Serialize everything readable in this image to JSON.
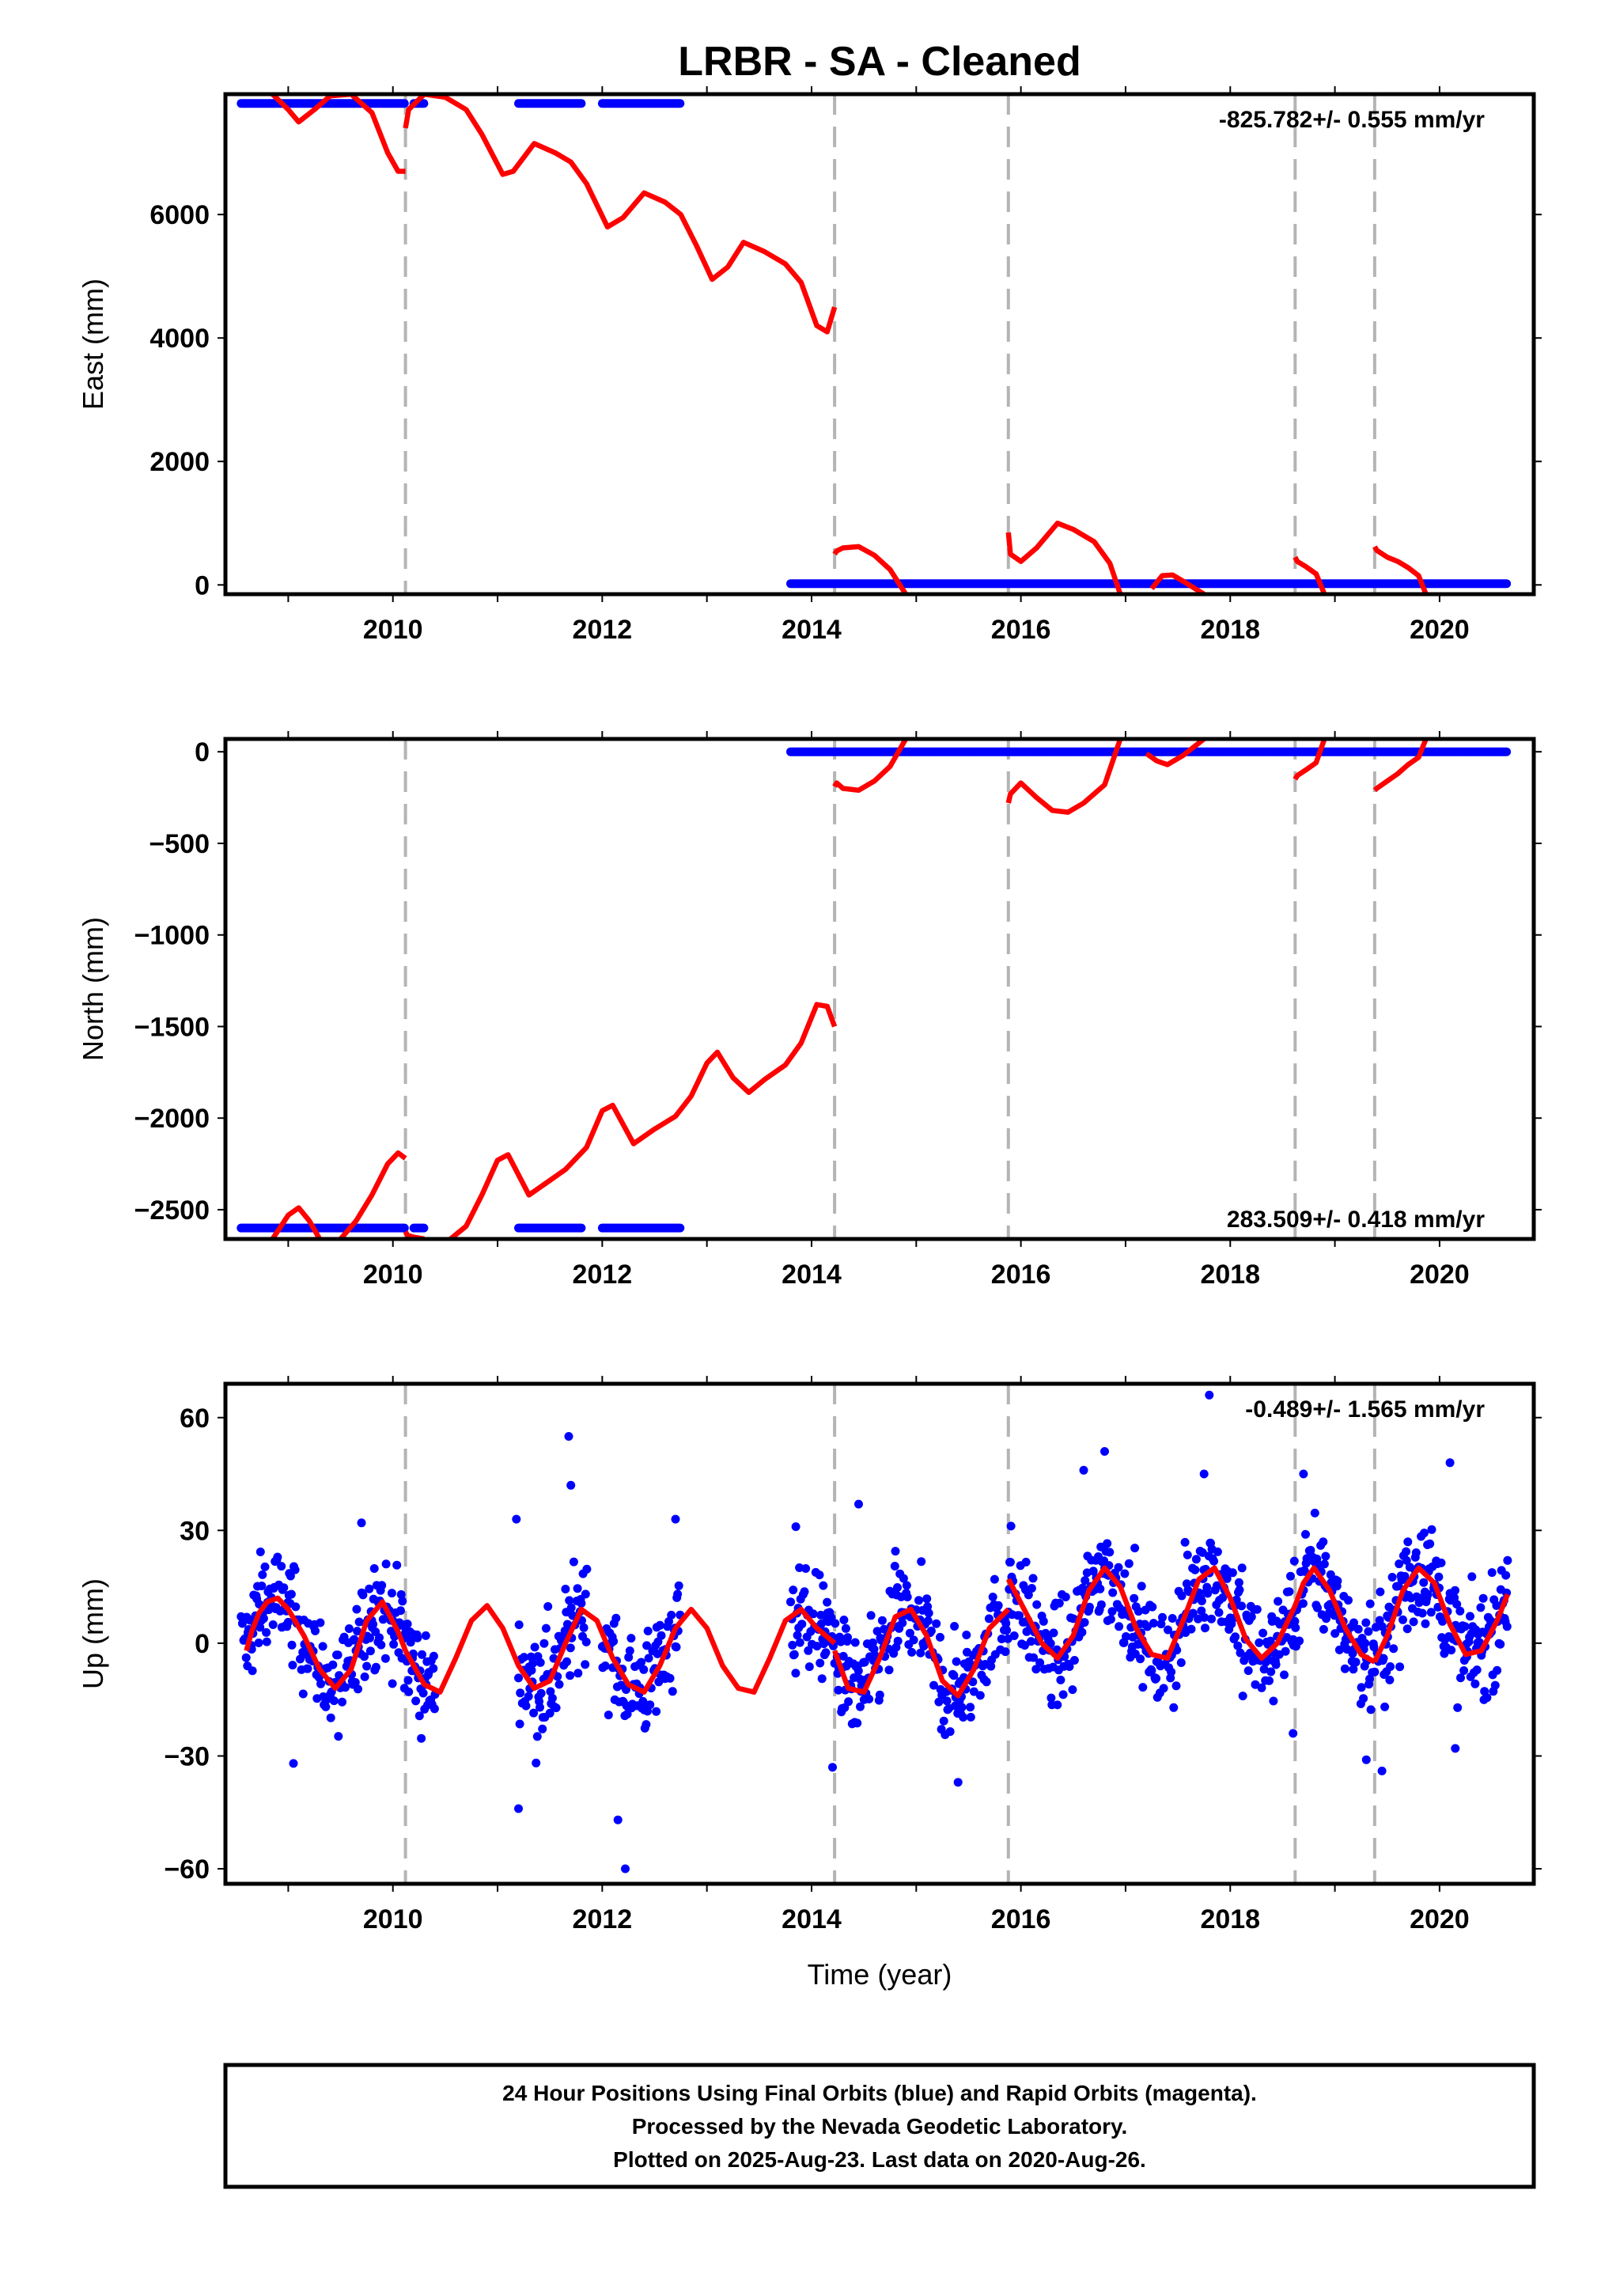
{
  "title": "LRBR  - SA - Cleaned",
  "colors": {
    "observations": "#0000ff",
    "model": "#ff0000",
    "breaks": "#b4b4b4"
  },
  "xlabel": "Time (year)",
  "x_ticks": [
    "2010",
    "2012",
    "2014",
    "2016",
    "2018",
    "2020"
  ],
  "footer": [
    "24 Hour Positions Using Final Orbits (blue) and Rapid Orbits (magenta).",
    "Processed by the Nevada Geodetic Laboratory.",
    "Plotted on 2025-Aug-23. Last data on 2020-Aug-26."
  ],
  "chart_data": [
    {
      "type": "scatter",
      "component": "east",
      "ylabel": "East (mm)",
      "rate": "-825.782+/- 0.555 mm/yr",
      "xlim": [
        2008.4,
        2020.9
      ],
      "ylim": [
        -150,
        7950
      ],
      "y_ticks": [
        "0",
        "2000",
        "4000",
        "6000"
      ],
      "y_tick_values": [
        0,
        2000,
        4000,
        6000
      ],
      "break_epochs": [
        2010.12,
        2014.22,
        2015.88,
        2018.62,
        2019.38
      ],
      "series": [
        {
          "name": "Observations",
          "segments": [
            {
              "x": [
                2008.55,
                2010.12
              ],
              "y": 7800
            },
            {
              "x": [
                2010.2,
                2010.3
              ],
              "y": 7800
            },
            {
              "x": [
                2011.2,
                2011.8
              ],
              "y": 7800
            },
            {
              "x": [
                2012.0,
                2012.75
              ],
              "y": 7800
            },
            {
              "x": [
                2013.8,
                2020.65
              ],
              "y": 20
            }
          ]
        },
        {
          "name": "Model",
          "pieces": [
            {
              "x": [
                2008.85,
                2009.0,
                2009.1,
                2009.25,
                2009.4,
                2009.6,
                2009.8,
                2009.95,
                2010.05,
                2010.12
              ],
              "y": [
                7950,
                7700,
                7500,
                7700,
                7920,
                7950,
                7650,
                7000,
                6700,
                6700
              ]
            },
            {
              "x": [
                2010.12,
                2010.15,
                2010.3,
                2010.5,
                2010.7,
                2010.85,
                2011.05,
                2011.15,
                2011.35,
                2011.55,
                2011.7,
                2011.85,
                2012.05,
                2012.2,
                2012.4,
                2012.6,
                2012.75,
                2012.9,
                2013.05,
                2013.2,
                2013.35,
                2013.55,
                2013.75,
                2013.9,
                2014.05,
                2014.15,
                2014.22
              ],
              "y": [
                7400,
                7700,
                7950,
                7900,
                7700,
                7300,
                6650,
                6700,
                7150,
                7000,
                6850,
                6500,
                5800,
                5950,
                6350,
                6200,
                6000,
                5500,
                4950,
                5150,
                5550,
                5400,
                5200,
                4900,
                4200,
                4100,
                4500
              ]
            },
            {
              "x": [
                2014.22,
                2014.24,
                2014.3,
                2014.45,
                2014.6,
                2014.75,
                2014.9
              ],
              "y": [
                500,
                550,
                600,
                620,
                480,
                250,
                -150
              ]
            },
            {
              "x": [
                2015.88,
                2015.9,
                2016.0,
                2016.15,
                2016.35,
                2016.5,
                2016.7,
                2016.85,
                2016.95
              ],
              "y": [
                850,
                500,
                380,
                600,
                1000,
                900,
                700,
                350,
                -150
              ]
            },
            {
              "x": [
                2017.25,
                2017.35,
                2017.45,
                2017.55,
                2017.75
              ],
              "y": [
                -60,
                150,
                160,
                60,
                -150
              ]
            },
            {
              "x": [
                2018.62,
                2018.64,
                2018.72,
                2018.82,
                2018.9
              ],
              "y": [
                450,
                380,
                300,
                180,
                -150
              ]
            },
            {
              "x": [
                2019.38,
                2019.4,
                2019.5,
                2019.6,
                2019.7,
                2019.8,
                2019.87
              ],
              "y": [
                620,
                560,
                450,
                380,
                280,
                150,
                -150
              ]
            }
          ]
        }
      ]
    },
    {
      "type": "scatter",
      "component": "north",
      "ylabel": "North (mm)",
      "rate": "283.509+/- 0.418 mm/yr",
      "xlim": [
        2008.4,
        2020.9
      ],
      "ylim": [
        -2660,
        70
      ],
      "y_ticks": [
        "0",
        "−500",
        "−1000",
        "−1500",
        "−2000",
        "−2500"
      ],
      "y_tick_values": [
        0,
        -500,
        -1000,
        -1500,
        -2000,
        -2500
      ],
      "break_epochs": [
        2010.12,
        2014.22,
        2015.88,
        2018.62,
        2019.38
      ],
      "series": [
        {
          "name": "Observations",
          "segments": [
            {
              "x": [
                2008.55,
                2010.12
              ],
              "y": -2600
            },
            {
              "x": [
                2010.2,
                2010.3
              ],
              "y": -2600
            },
            {
              "x": [
                2011.2,
                2011.8
              ],
              "y": -2600
            },
            {
              "x": [
                2012.0,
                2012.75
              ],
              "y": -2600
            },
            {
              "x": [
                2013.8,
                2020.65
              ],
              "y": 0
            }
          ]
        },
        {
          "name": "Model",
          "pieces": [
            {
              "x": [
                2008.85,
                2009.0,
                2009.1,
                2009.2,
                2009.3
              ],
              "y": [
                -2660,
                -2530,
                -2490,
                -2560,
                -2660
              ]
            },
            {
              "x": [
                2009.5,
                2009.65,
                2009.8,
                2009.95,
                2010.05,
                2010.12
              ],
              "y": [
                -2660,
                -2560,
                -2420,
                -2250,
                -2190,
                -2220
              ]
            },
            {
              "x": [
                2010.12,
                2010.14,
                2010.2,
                2010.3
              ],
              "y": [
                -2620,
                -2640,
                -2650,
                -2660
              ]
            },
            {
              "x": [
                2010.55,
                2010.7,
                2010.85,
                2011.0,
                2011.1,
                2011.3,
                2011.5,
                2011.65,
                2011.85,
                2012.0,
                2012.1,
                2012.3,
                2012.5,
                2012.7,
                2012.85,
                2013.0,
                2013.1,
                2013.25,
                2013.4,
                2013.55,
                2013.75,
                2013.9,
                2014.05,
                2014.15,
                2014.22
              ],
              "y": [
                -2660,
                -2590,
                -2420,
                -2230,
                -2200,
                -2420,
                -2340,
                -2280,
                -2160,
                -1960,
                -1930,
                -2140,
                -2060,
                -1990,
                -1880,
                -1700,
                -1640,
                -1780,
                -1860,
                -1790,
                -1710,
                -1590,
                -1380,
                -1390,
                -1500
              ]
            },
            {
              "x": [
                2014.22,
                2014.24,
                2014.3,
                2014.45,
                2014.6,
                2014.75,
                2014.9
              ],
              "y": [
                -190,
                -170,
                -200,
                -210,
                -160,
                -80,
                70
              ]
            },
            {
              "x": [
                2015.88,
                2015.9,
                2016.0,
                2016.15,
                2016.3,
                2016.45,
                2016.6,
                2016.8,
                2016.95
              ],
              "y": [
                -280,
                -230,
                -170,
                -250,
                -320,
                -330,
                -280,
                -180,
                70
              ]
            },
            {
              "x": [
                2017.2,
                2017.3,
                2017.4,
                2017.55,
                2017.75
              ],
              "y": [
                -10,
                -50,
                -70,
                -20,
                70
              ]
            },
            {
              "x": [
                2018.62,
                2018.64,
                2018.72,
                2018.82,
                2018.9
              ],
              "y": [
                -150,
                -130,
                -100,
                -60,
                70
              ]
            },
            {
              "x": [
                2019.38,
                2019.4,
                2019.5,
                2019.6,
                2019.7,
                2019.8,
                2019.87
              ],
              "y": [
                -210,
                -200,
                -160,
                -120,
                -70,
                -30,
                70
              ]
            }
          ]
        }
      ]
    },
    {
      "type": "scatter",
      "component": "up",
      "ylabel": "Up (mm)",
      "rate": "-0.489+/- 1.565 mm/yr",
      "xlim": [
        2008.4,
        2020.9
      ],
      "ylim": [
        -64,
        69
      ],
      "y_ticks": [
        "60",
        "30",
        "0",
        "−30",
        "−60"
      ],
      "y_tick_values": [
        60,
        30,
        0,
        -30,
        -60
      ],
      "break_epochs": [
        2010.12,
        2014.22,
        2015.88,
        2018.62,
        2019.38
      ],
      "series": [
        {
          "name": "Observations",
          "segments": [
            {
              "x": [
                2008.55,
                2010.4
              ],
              "spread": 10
            },
            {
              "x": [
                2011.2,
                2011.85
              ],
              "spread": 10
            },
            {
              "x": [
                2012.0,
                2012.75
              ],
              "spread": 10
            },
            {
              "x": [
                2013.8,
                2020.65
              ],
              "spread": 10
            }
          ],
          "outliers": [
            {
              "x": 2011.68,
              "y": 55
            },
            {
              "x": 2011.7,
              "y": 42
            },
            {
              "x": 2012.7,
              "y": 33
            },
            {
              "x": 2012.22,
              "y": -60
            },
            {
              "x": 2012.15,
              "y": -47
            },
            {
              "x": 2011.18,
              "y": 33
            },
            {
              "x": 2011.2,
              "y": -44
            },
            {
              "x": 2009.05,
              "y": -32
            },
            {
              "x": 2017.8,
              "y": 66
            },
            {
              "x": 2016.8,
              "y": 51
            },
            {
              "x": 2020.1,
              "y": 48
            },
            {
              "x": 2016.6,
              "y": 46
            },
            {
              "x": 2017.75,
              "y": 45
            },
            {
              "x": 2018.7,
              "y": 45
            },
            {
              "x": 2014.2,
              "y": -33
            },
            {
              "x": 2015.4,
              "y": -37
            },
            {
              "x": 2019.45,
              "y": -34
            },
            {
              "x": 2019.3,
              "y": -31
            },
            {
              "x": 2020.15,
              "y": -28
            },
            {
              "x": 2018.6,
              "y": -24
            },
            {
              "x": 2013.85,
              "y": 31
            },
            {
              "x": 2014.45,
              "y": 37
            },
            {
              "x": 2020.65,
              "y": 22
            },
            {
              "x": 2009.7,
              "y": 32
            }
          ]
        },
        {
          "name": "Model",
          "pieces": [
            {
              "x": [
                2008.6,
                2008.65,
                2008.72,
                2008.8,
                2008.9,
                2009.0,
                2009.15,
                2009.3,
                2009.45,
                2009.6,
                2009.75,
                2009.9,
                2010.05,
                2010.12
              ],
              "y": [
                -2,
                3,
                8,
                11,
                12,
                9,
                2,
                -7,
                -12,
                -7,
                6,
                11,
                3,
                -2
              ]
            },
            {
              "x": [
                2010.12,
                2010.3,
                2010.45,
                2010.6,
                2010.75,
                2010.9,
                2011.05,
                2011.2,
                2011.35,
                2011.5,
                2011.65,
                2011.8,
                2011.95,
                2012.1,
                2012.25,
                2012.4,
                2012.55,
                2012.7,
                2012.85,
                2013.0,
                2013.15,
                2013.3,
                2013.45,
                2013.6,
                2013.75,
                2013.9,
                2014.05,
                2014.22
              ],
              "y": [
                -2,
                -11,
                -13,
                -4,
                6,
                10,
                4,
                -6,
                -12,
                -10,
                0,
                9,
                6,
                -4,
                -11,
                -13,
                -6,
                4,
                9,
                4,
                -6,
                -12,
                -13,
                -4,
                6,
                9,
                4,
                0
              ]
            },
            {
              "x": [
                2014.22,
                2014.35,
                2014.5,
                2014.65,
                2014.8,
                2014.95,
                2015.1,
                2015.25,
                2015.4,
                2015.55,
                2015.7,
                2015.88
              ],
              "y": [
                -2,
                -12,
                -13,
                -4,
                7,
                9,
                2,
                -10,
                -14,
                -7,
                4,
                9
              ]
            },
            {
              "x": [
                2015.88,
                2015.92,
                2016.05,
                2016.2,
                2016.35,
                2016.5,
                2016.65,
                2016.8,
                2016.95,
                2017.1,
                2017.25,
                2017.4,
                2017.55,
                2017.7,
                2017.85,
                2018.0,
                2018.15,
                2018.3,
                2018.45,
                2018.62
              ],
              "y": [
                17,
                15,
                8,
                0,
                -4,
                2,
                14,
                20,
                15,
                4,
                -3,
                -4,
                6,
                17,
                20,
                12,
                1,
                -4,
                0,
                10
              ]
            },
            {
              "x": [
                2018.62,
                2018.7,
                2018.8,
                2018.95,
                2019.1,
                2019.25,
                2019.38
              ],
              "y": [
                10,
                16,
                20,
                14,
                4,
                -3,
                -5
              ]
            },
            {
              "x": [
                2019.38,
                2019.5,
                2019.65,
                2019.8,
                2019.95,
                2020.1,
                2020.25,
                2020.4,
                2020.55,
                2020.65
              ],
              "y": [
                -5,
                2,
                14,
                20,
                16,
                5,
                -3,
                -2,
                6,
                13
              ]
            }
          ]
        }
      ]
    }
  ]
}
